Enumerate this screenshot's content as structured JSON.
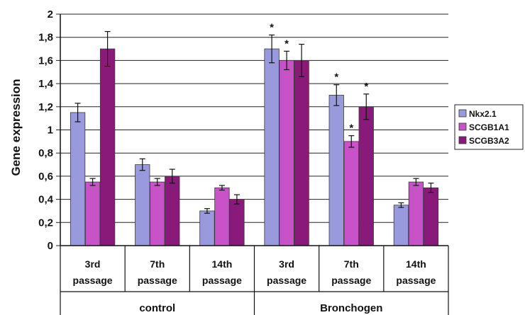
{
  "chart_data": {
    "type": "bar",
    "ylabel": "Gene expression",
    "ylim": [
      0,
      2
    ],
    "yticks": [
      "0",
      "0,2",
      "0,4",
      "0,6",
      "0,8",
      "1",
      "1,2",
      "1,4",
      "1,6",
      "1,8",
      "2"
    ],
    "grid": true,
    "legend_position": "right",
    "categories": [
      {
        "line1": "3rd",
        "line2": "passage"
      },
      {
        "line1": "7th",
        "line2": "passage"
      },
      {
        "line1": "14th",
        "line2": "passage"
      },
      {
        "line1": "3rd",
        "line2": "passage"
      },
      {
        "line1": "7th",
        "line2": "passage"
      },
      {
        "line1": "14th",
        "line2": "passage"
      }
    ],
    "groups": [
      {
        "label": "control",
        "span": [
          0,
          2
        ]
      },
      {
        "label": "Bronchogen",
        "span": [
          3,
          5
        ]
      }
    ],
    "series": [
      {
        "name": "Nkx2.1",
        "color": "#9999dd",
        "values": [
          1.15,
          0.7,
          0.3,
          1.7,
          1.3,
          0.35
        ],
        "errors": [
          0.08,
          0.05,
          0.02,
          0.12,
          0.09,
          0.02
        ]
      },
      {
        "name": "SCGB1A1",
        "color": "#c853c8",
        "values": [
          0.55,
          0.55,
          0.5,
          1.6,
          0.9,
          0.55
        ],
        "errors": [
          0.03,
          0.03,
          0.02,
          0.08,
          0.05,
          0.03
        ]
      },
      {
        "name": "SCGB3A2",
        "color": "#8a1a7a",
        "values": [
          1.7,
          0.6,
          0.4,
          1.6,
          1.2,
          0.5
        ],
        "errors": [
          0.15,
          0.06,
          0.04,
          0.14,
          0.11,
          0.04
        ]
      }
    ],
    "annotations": [
      {
        "text": "*",
        "category": 3,
        "series": 0
      },
      {
        "text": "*",
        "category": 3,
        "series": 1
      },
      {
        "text": "*",
        "category": 4,
        "series": 0
      },
      {
        "text": "*",
        "category": 4,
        "series": 1
      },
      {
        "text": "*",
        "category": 4,
        "series": 2
      }
    ]
  }
}
